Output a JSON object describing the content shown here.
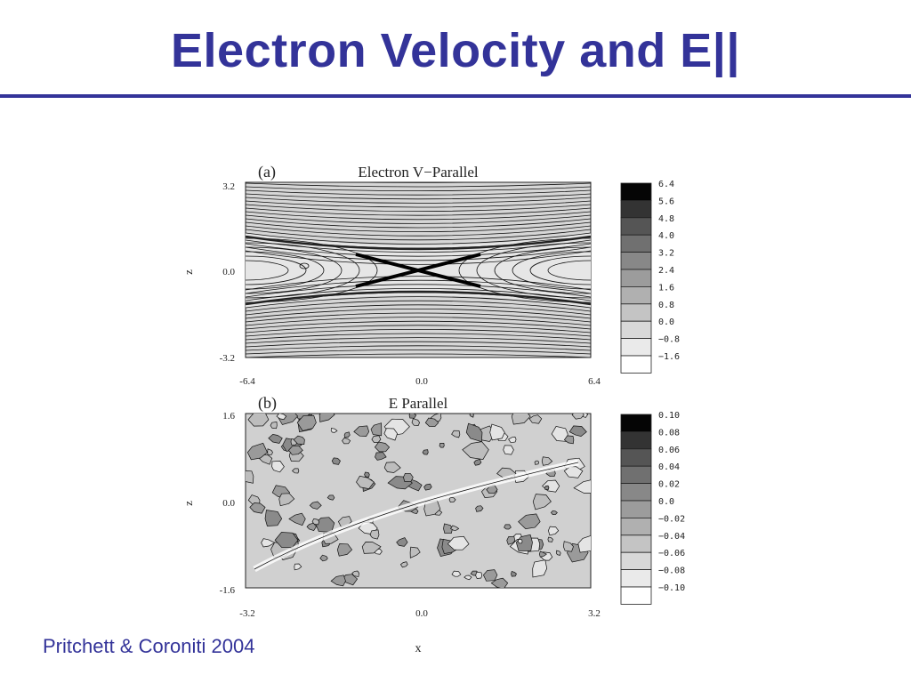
{
  "slide": {
    "title": "Electron Velocity and E||",
    "citation": "Pritchett & Coroniti 2004"
  },
  "colors": {
    "title": "#333399",
    "rule": "#333399"
  },
  "chart_data": [
    {
      "type": "heatmap",
      "panel_label": "(a)",
      "title": "Electron V−Parallel",
      "xlabel": "",
      "ylabel": "z",
      "xlim": [
        -6.4,
        6.4
      ],
      "ylim": [
        -3.2,
        3.2
      ],
      "x_ticks": [
        "-6.4",
        "0.0",
        "6.4"
      ],
      "y_ticks": [
        "3.2",
        "0.0",
        "-3.2"
      ],
      "colorbar_levels": [
        "6.4",
        "5.6",
        "4.8",
        "4.0",
        "3.2",
        "2.4",
        "1.6",
        "0.8",
        "0.0",
        "−0.8",
        "−1.6"
      ]
    },
    {
      "type": "heatmap",
      "panel_label": "(b)",
      "title": "E Parallel",
      "xlabel": "x",
      "ylabel": "z",
      "xlim": [
        -3.2,
        3.2
      ],
      "ylim": [
        -1.6,
        1.6
      ],
      "x_ticks": [
        "-3.2",
        "0.0",
        "3.2"
      ],
      "y_ticks": [
        "1.6",
        "0.0",
        "-1.6"
      ],
      "colorbar_levels": [
        "0.10",
        "0.08",
        "0.06",
        "0.04",
        "0.02",
        "0.0",
        "−0.02",
        "−0.04",
        "−0.06",
        "−0.08",
        "−0.10"
      ]
    }
  ]
}
